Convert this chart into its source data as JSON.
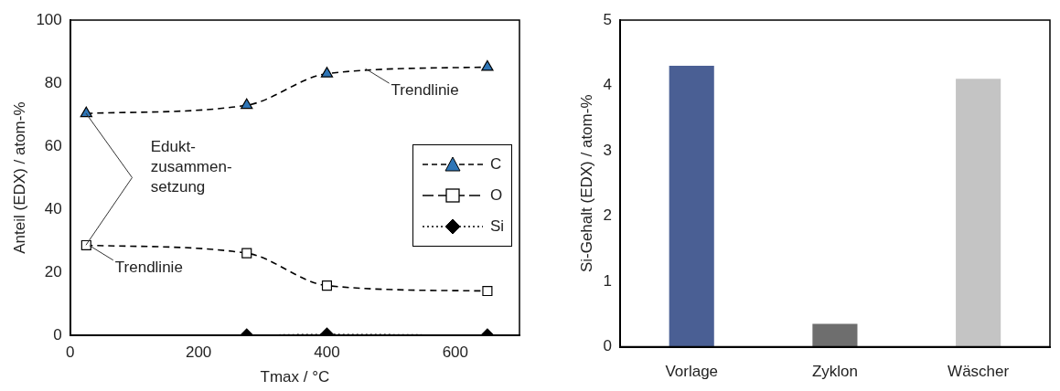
{
  "chart_data": [
    {
      "type": "line",
      "xlabel": "Tmax / °C",
      "ylabel": "Anteil (EDX) / atom-%",
      "xlim": [
        0,
        700
      ],
      "xticks": [
        0,
        200,
        400,
        600
      ],
      "ylim": [
        0,
        100
      ],
      "yticks": [
        0,
        20,
        40,
        60,
        80,
        100
      ],
      "grid": false,
      "legend": "right",
      "series": [
        {
          "name": "C",
          "color": "#2e75b6",
          "x": [
            25,
            275,
            400,
            650
          ],
          "values": [
            70.4,
            73,
            83,
            85.1
          ],
          "marker": "triangle",
          "line_style": "dashed"
        },
        {
          "name": "O",
          "color": "#000000",
          "x": [
            25,
            275,
            400,
            650
          ],
          "values": [
            28.6,
            26.1,
            15.8,
            14.1
          ],
          "marker": "square",
          "line_style": "dashed"
        },
        {
          "name": "Si",
          "color": "#000000",
          "x": [
            275,
            400,
            650
          ],
          "values": [
            0,
            0.3,
            0
          ],
          "marker": "diamond",
          "line_style": "dotted"
        }
      ],
      "annotations": [
        "Edukt-zusammen-setzung",
        {
          "text": "Trendlinie",
          "x": 460,
          "y": 84.6
        },
        {
          "text": "Trendlinie",
          "x": 30,
          "y": 28.5
        }
      ]
    },
    {
      "type": "bar",
      "ylabel": "Si-Gehalt (EDX) / atom-%",
      "categories": [
        "Vorlage",
        "Zyklon",
        "Wäscher"
      ],
      "values": [
        4.3,
        0.35,
        4.1
      ],
      "colors": [
        "#4a5f94",
        "#6e6e6e",
        "#c4c4c4"
      ],
      "ylim": [
        0,
        5
      ],
      "yticks": [
        0,
        1,
        2,
        3,
        4,
        5
      ],
      "grid": false
    }
  ]
}
